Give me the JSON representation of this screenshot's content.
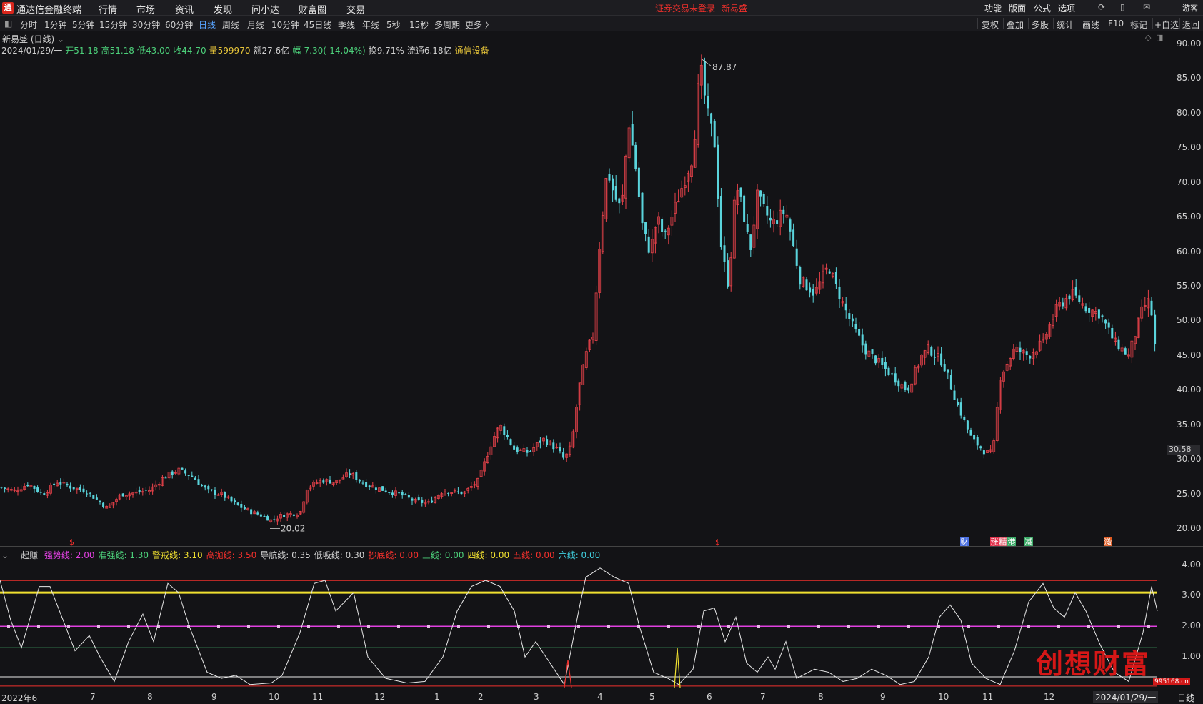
{
  "app": {
    "name": "通达信金融终端",
    "logo_glyph": "通",
    "menu": [
      "行情",
      "市场",
      "资讯",
      "发现",
      "问小达",
      "财富圈",
      "交易"
    ],
    "login_status": "证券交易未登录",
    "stock_name": "新易盛",
    "system_menu": [
      "功能",
      "版面",
      "公式",
      "选项"
    ],
    "user_label": "游客"
  },
  "periods": [
    "分时",
    "1分钟",
    "5分钟",
    "15分钟",
    "30分钟",
    "60分钟",
    "日线",
    "周线",
    "月线",
    "10分钟",
    "45日线",
    "季线",
    "年线",
    "5秒",
    "15秒",
    "多周期",
    "更多 〉"
  ],
  "active_period": "日线",
  "tools": [
    "复权",
    "叠加",
    "多股",
    "统计",
    "画线",
    "F10",
    "标记",
    "+自选",
    "返回"
  ],
  "chart": {
    "title": "新易盛 (日线)",
    "date": "2024/01/29/一",
    "open": "开51.18",
    "high": "高51.18",
    "low": "低43.00",
    "close": "收44.70",
    "volume": "量599970",
    "amount": "额27.6亿",
    "change": "幅-7.30(-14.04%)",
    "turnover": "换9.71%",
    "float": "流通6.18亿",
    "industry": "通信设备",
    "price_ticks": [
      "90.00",
      "85.00",
      "80.00",
      "75.00",
      "70.00",
      "65.00",
      "60.00",
      "55.00",
      "50.00",
      "45.00",
      "40.00",
      "35.00",
      "30.00",
      "25.00",
      "20.00"
    ],
    "current_price_tag": "30.58",
    "high_label": "87.87",
    "low_label": "20.02",
    "badges": [
      "财",
      "涨",
      "精",
      "港",
      "减",
      "激"
    ],
    "signal_glyph": "$",
    "up_color": "#e8424a",
    "down_color": "#5ad4dc"
  },
  "oscillator": {
    "name": "一起赚",
    "lines": [
      {
        "label": "强势线:",
        "value": "2.00",
        "color": "#e040e0"
      },
      {
        "label": "准强线:",
        "value": "1.30",
        "color": "#4cd07a"
      },
      {
        "label": "警戒线:",
        "value": "3.10",
        "color": "#f0e030"
      },
      {
        "label": "高抛线:",
        "value": "3.50",
        "color": "#f0302c"
      },
      {
        "label": "导航线:",
        "value": "0.35",
        "color": "#d0d0d0"
      },
      {
        "label": "低吸线:",
        "value": "0.30",
        "color": "#d0d0d0"
      },
      {
        "label": "抄底线:",
        "value": "0.00",
        "color": "#f0302c"
      },
      {
        "label": "三线:",
        "value": "0.00",
        "color": "#4cd07a"
      },
      {
        "label": "四线:",
        "value": "0.00",
        "color": "#f0e030"
      },
      {
        "label": "五线:",
        "value": "0.00",
        "color": "#f0302c"
      },
      {
        "label": "六线:",
        "value": "0.00",
        "color": "#40d0e0"
      }
    ],
    "ticks": [
      "4.00",
      "3.00",
      "2.00",
      "1.00"
    ]
  },
  "xaxis": {
    "labels": [
      "2022年6",
      "7",
      "8",
      "9",
      "10",
      "11",
      "12",
      "1",
      "2",
      "3",
      "4",
      "5",
      "6",
      "7",
      "8",
      "9",
      "10",
      "11",
      "12"
    ],
    "current": "2024/01/29/一",
    "period": "日线"
  },
  "watermark": {
    "text": "创想财富",
    "url": "995168.cn"
  }
}
